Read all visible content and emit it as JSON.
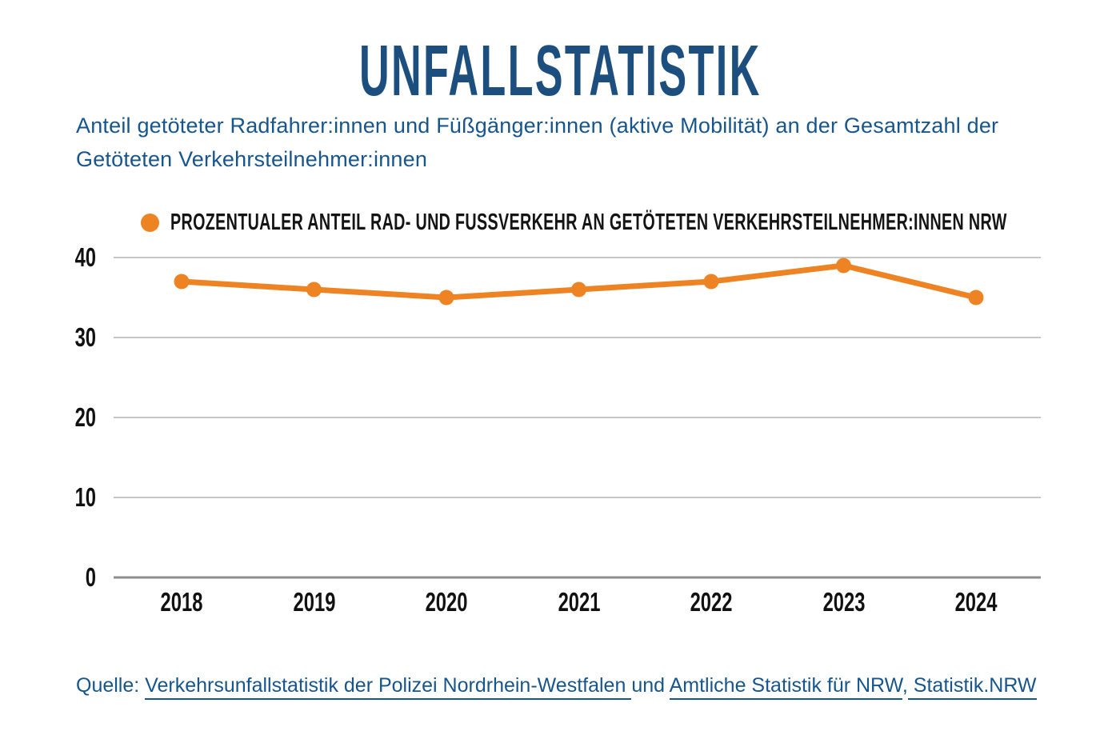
{
  "title": "UNFALLSTATISTIK",
  "subtitle": "Anteil getöteter Radfahrer:innen und Füßgänger:innen (aktive Mobilität) an der Gesamtzahl der Getöteten Verkehrsteilnehmer:innen",
  "legend": {
    "label": "PROZENTUALER ANTEIL RAD- UND FUSSVERKEHR AN GETÖTETEN VERKEHRSTEILNEHMER:INNEN NRW",
    "marker_color": "#ED8322"
  },
  "colors": {
    "title_blue": "#1d4f7e",
    "text_blue": "#17568c",
    "line_orange": "#ED8322",
    "axis_text": "#111111",
    "gridline": "#c6c6c6",
    "baseline": "#8f8f8f"
  },
  "chart_data": {
    "type": "line",
    "categories": [
      "2018",
      "2019",
      "2020",
      "2021",
      "2022",
      "2023",
      "2024"
    ],
    "series": [
      {
        "name": "Prozentualer Anteil Rad- und Fussverkehr an getöteten Verkehrsteilnehmer:innen NRW",
        "values": [
          37,
          36,
          35,
          36,
          37,
          39,
          35
        ],
        "color": "#ED8322"
      }
    ],
    "title": "Unfallstatistik",
    "xlabel": "",
    "ylabel": "",
    "ylim": [
      0,
      45
    ],
    "yticks": [
      0,
      10,
      20,
      30,
      40
    ],
    "grid": true,
    "legend_position": "top-left",
    "marker": "circle"
  },
  "footer": {
    "segments": [
      {
        "text": "Quelle: ",
        "link": false
      },
      {
        "text": "Verkehrsunfallstatistik der Polizei Nordrhein-Westfalen ",
        "link": true
      },
      {
        "text": "und ",
        "link": false
      },
      {
        "text": "Amtliche Statistik für NRW",
        "link": true
      },
      {
        "text": ",",
        "link": false
      },
      {
        "text": " Statistik.NRW",
        "link": true
      }
    ]
  }
}
